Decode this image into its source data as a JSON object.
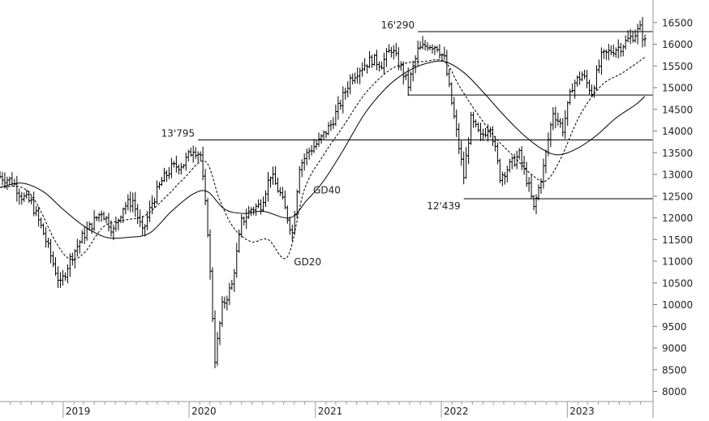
{
  "chart_data": {
    "type": "line",
    "subtype": "weekly OHLC bars with moving averages",
    "title": "",
    "xlabel": "",
    "ylabel": "",
    "x_tick_labels": [
      "2019",
      "2020",
      "2021",
      "2022",
      "2023"
    ],
    "y_tick_labels": [
      "8000",
      "8500",
      "9000",
      "9500",
      "10000",
      "10500",
      "11000",
      "11500",
      "12000",
      "12500",
      "13000",
      "13500",
      "14000",
      "14500",
      "15000",
      "15500",
      "16000",
      "16500"
    ],
    "y_ticks": [
      8000,
      8500,
      9000,
      9500,
      10000,
      10500,
      11000,
      11500,
      12000,
      12500,
      13000,
      13500,
      14000,
      14500,
      15000,
      15500,
      16000,
      16500
    ],
    "xlim": [
      "2018-07-02",
      "2023-08-14"
    ],
    "ylim": [
      7860,
      16720
    ],
    "y_axis_side": "right",
    "grid": false,
    "colors": {
      "bars": "#000000",
      "lines": "#000000",
      "background": "#ffffff"
    },
    "price_series": [
      {
        "date": "2018-07-02",
        "close": 12950
      },
      {
        "date": "2018-08-06",
        "close": 12850
      },
      {
        "date": "2018-09-03",
        "close": 12500
      },
      {
        "date": "2018-10-01",
        "close": 12350
      },
      {
        "date": "2018-11-05",
        "close": 11650
      },
      {
        "date": "2018-12-03",
        "close": 10950
      },
      {
        "date": "2018-12-24",
        "close": 10450
      },
      {
        "date": "2019-01-21",
        "close": 11050
      },
      {
        "date": "2019-02-25",
        "close": 11550
      },
      {
        "date": "2019-03-25",
        "close": 11850
      },
      {
        "date": "2019-04-22",
        "close": 12150
      },
      {
        "date": "2019-05-27",
        "close": 11700
      },
      {
        "date": "2019-06-24",
        "close": 12250
      },
      {
        "date": "2019-07-22",
        "close": 12400
      },
      {
        "date": "2019-08-19",
        "close": 11650
      },
      {
        "date": "2019-09-16",
        "close": 12350
      },
      {
        "date": "2019-10-14",
        "close": 12850
      },
      {
        "date": "2019-11-11",
        "close": 13150
      },
      {
        "date": "2019-12-16",
        "close": 13250
      },
      {
        "date": "2020-01-13",
        "close": 13600
      },
      {
        "date": "2020-02-03",
        "close": 13450
      },
      {
        "date": "2020-02-24",
        "close": 11700
      },
      {
        "date": "2020-03-16",
        "close": 8750
      },
      {
        "date": "2020-04-06",
        "close": 9950
      },
      {
        "date": "2020-05-04",
        "close": 10450
      },
      {
        "date": "2020-06-01",
        "close": 11900
      },
      {
        "date": "2020-06-29",
        "close": 12200
      },
      {
        "date": "2020-07-27",
        "close": 12300
      },
      {
        "date": "2020-08-24",
        "close": 13000
      },
      {
        "date": "2020-09-21",
        "close": 12550
      },
      {
        "date": "2020-10-26",
        "close": 11650
      },
      {
        "date": "2020-11-16",
        "close": 13200
      },
      {
        "date": "2020-12-14",
        "close": 13550
      },
      {
        "date": "2021-01-11",
        "close": 13750
      },
      {
        "date": "2021-02-15",
        "close": 14150
      },
      {
        "date": "2021-03-15",
        "close": 14650
      },
      {
        "date": "2021-04-12",
        "close": 15200
      },
      {
        "date": "2021-05-10",
        "close": 15450
      },
      {
        "date": "2021-06-14",
        "close": 15650
      },
      {
        "date": "2021-07-12",
        "close": 15550
      },
      {
        "date": "2021-08-09",
        "close": 15900
      },
      {
        "date": "2021-09-06",
        "close": 15450
      },
      {
        "date": "2021-09-27",
        "close": 15050
      },
      {
        "date": "2021-10-25",
        "close": 15850
      },
      {
        "date": "2021-11-22",
        "close": 16000
      },
      {
        "date": "2021-12-20",
        "close": 15950
      },
      {
        "date": "2022-01-10",
        "close": 15650
      },
      {
        "date": "2022-01-31",
        "close": 14650
      },
      {
        "date": "2022-03-07",
        "close": 12950
      },
      {
        "date": "2022-03-28",
        "close": 14250
      },
      {
        "date": "2022-04-25",
        "close": 13850
      },
      {
        "date": "2022-05-23",
        "close": 14150
      },
      {
        "date": "2022-06-20",
        "close": 12950
      },
      {
        "date": "2022-07-18",
        "close": 13200
      },
      {
        "date": "2022-08-15",
        "close": 13450
      },
      {
        "date": "2022-09-12",
        "close": 12700
      },
      {
        "date": "2022-09-26",
        "close": 12200
      },
      {
        "date": "2022-10-24",
        "close": 13150
      },
      {
        "date": "2022-11-21",
        "close": 14450
      },
      {
        "date": "2022-12-19",
        "close": 14050
      },
      {
        "date": "2023-01-16",
        "close": 15050
      },
      {
        "date": "2023-02-13",
        "close": 15300
      },
      {
        "date": "2023-03-13",
        "close": 14900
      },
      {
        "date": "2023-04-10",
        "close": 15700
      },
      {
        "date": "2023-05-08",
        "close": 15850
      },
      {
        "date": "2023-06-05",
        "close": 15950
      },
      {
        "date": "2023-07-03",
        "close": 16150
      },
      {
        "date": "2023-07-31",
        "close": 16350
      },
      {
        "date": "2023-08-14",
        "close": 16050
      }
    ],
    "moving_averages": [
      {
        "name": "GD20",
        "style": "dashed",
        "points": [
          {
            "date": "2018-07-02",
            "value": 12700
          },
          {
            "date": "2018-09-03",
            "value": 12700
          },
          {
            "date": "2018-10-15",
            "value": 12350
          },
          {
            "date": "2018-12-10",
            "value": 11450
          },
          {
            "date": "2019-01-21",
            "value": 11050
          },
          {
            "date": "2019-03-04",
            "value": 11200
          },
          {
            "date": "2019-04-29",
            "value": 11800
          },
          {
            "date": "2019-07-01",
            "value": 11950
          },
          {
            "date": "2019-08-26",
            "value": 12050
          },
          {
            "date": "2019-10-28",
            "value": 12500
          },
          {
            "date": "2019-12-16",
            "value": 12900
          },
          {
            "date": "2020-02-17",
            "value": 13300
          },
          {
            "date": "2020-03-30",
            "value": 12400
          },
          {
            "date": "2020-05-11",
            "value": 11750
          },
          {
            "date": "2020-06-29",
            "value": 11450
          },
          {
            "date": "2020-08-17",
            "value": 11500
          },
          {
            "date": "2020-10-12",
            "value": 11100
          },
          {
            "date": "2020-11-30",
            "value": 12650
          },
          {
            "date": "2021-01-25",
            "value": 13450
          },
          {
            "date": "2021-03-22",
            "value": 14100
          },
          {
            "date": "2021-05-24",
            "value": 14850
          },
          {
            "date": "2021-07-26",
            "value": 15350
          },
          {
            "date": "2021-09-13",
            "value": 15550
          },
          {
            "date": "2021-11-08",
            "value": 15600
          },
          {
            "date": "2022-01-10",
            "value": 15600
          },
          {
            "date": "2022-02-21",
            "value": 15050
          },
          {
            "date": "2022-04-11",
            "value": 14450
          },
          {
            "date": "2022-06-06",
            "value": 13850
          },
          {
            "date": "2022-08-01",
            "value": 13400
          },
          {
            "date": "2022-09-19",
            "value": 13000
          },
          {
            "date": "2022-10-31",
            "value": 12850
          },
          {
            "date": "2022-12-12",
            "value": 13350
          },
          {
            "date": "2023-02-06",
            "value": 14350
          },
          {
            "date": "2023-04-10",
            "value": 15050
          },
          {
            "date": "2023-06-12",
            "value": 15350
          },
          {
            "date": "2023-08-14",
            "value": 15700
          }
        ]
      },
      {
        "name": "GD40",
        "style": "solid",
        "points": [
          {
            "date": "2018-07-02",
            "value": 12700
          },
          {
            "date": "2018-09-03",
            "value": 12800
          },
          {
            "date": "2018-11-05",
            "value": 12600
          },
          {
            "date": "2018-12-31",
            "value": 12200
          },
          {
            "date": "2019-03-04",
            "value": 11800
          },
          {
            "date": "2019-05-06",
            "value": 11550
          },
          {
            "date": "2019-07-08",
            "value": 11550
          },
          {
            "date": "2019-09-09",
            "value": 11650
          },
          {
            "date": "2019-11-11",
            "value": 12150
          },
          {
            "date": "2020-01-13",
            "value": 12550
          },
          {
            "date": "2020-02-24",
            "value": 12600
          },
          {
            "date": "2020-04-13",
            "value": 12200
          },
          {
            "date": "2020-06-08",
            "value": 12100
          },
          {
            "date": "2020-08-03",
            "value": 12150
          },
          {
            "date": "2020-10-19",
            "value": 12000
          },
          {
            "date": "2020-12-07",
            "value": 12400
          },
          {
            "date": "2021-01-25",
            "value": 12850
          },
          {
            "date": "2021-03-22",
            "value": 13550
          },
          {
            "date": "2021-05-24",
            "value": 14400
          },
          {
            "date": "2021-07-26",
            "value": 15000
          },
          {
            "date": "2021-09-20",
            "value": 15350
          },
          {
            "date": "2021-11-15",
            "value": 15550
          },
          {
            "date": "2022-01-10",
            "value": 15600
          },
          {
            "date": "2022-03-07",
            "value": 15350
          },
          {
            "date": "2022-05-02",
            "value": 14900
          },
          {
            "date": "2022-06-27",
            "value": 14400
          },
          {
            "date": "2022-08-22",
            "value": 13950
          },
          {
            "date": "2022-10-17",
            "value": 13600
          },
          {
            "date": "2022-12-05",
            "value": 13450
          },
          {
            "date": "2023-01-30",
            "value": 13600
          },
          {
            "date": "2023-03-27",
            "value": 13900
          },
          {
            "date": "2023-05-22",
            "value": 14300
          },
          {
            "date": "2023-07-17",
            "value": 14600
          },
          {
            "date": "2023-08-14",
            "value": 14800
          }
        ]
      }
    ],
    "horizontal_levels": [
      {
        "value": 16290,
        "from": "2021-10-25",
        "label": "16'290"
      },
      {
        "value": 13795,
        "from": "2020-01-27",
        "label": "13'795"
      },
      {
        "value": 14830,
        "from": "2021-09-27",
        "label": ""
      },
      {
        "value": 12439,
        "from": "2022-03-07",
        "label": "12'439"
      }
    ],
    "annotations": [
      {
        "text": "GD20",
        "date": "2020-10-26",
        "value": 11000
      },
      {
        "text": "GD40",
        "date": "2020-12-21",
        "value": 12650
      }
    ]
  }
}
